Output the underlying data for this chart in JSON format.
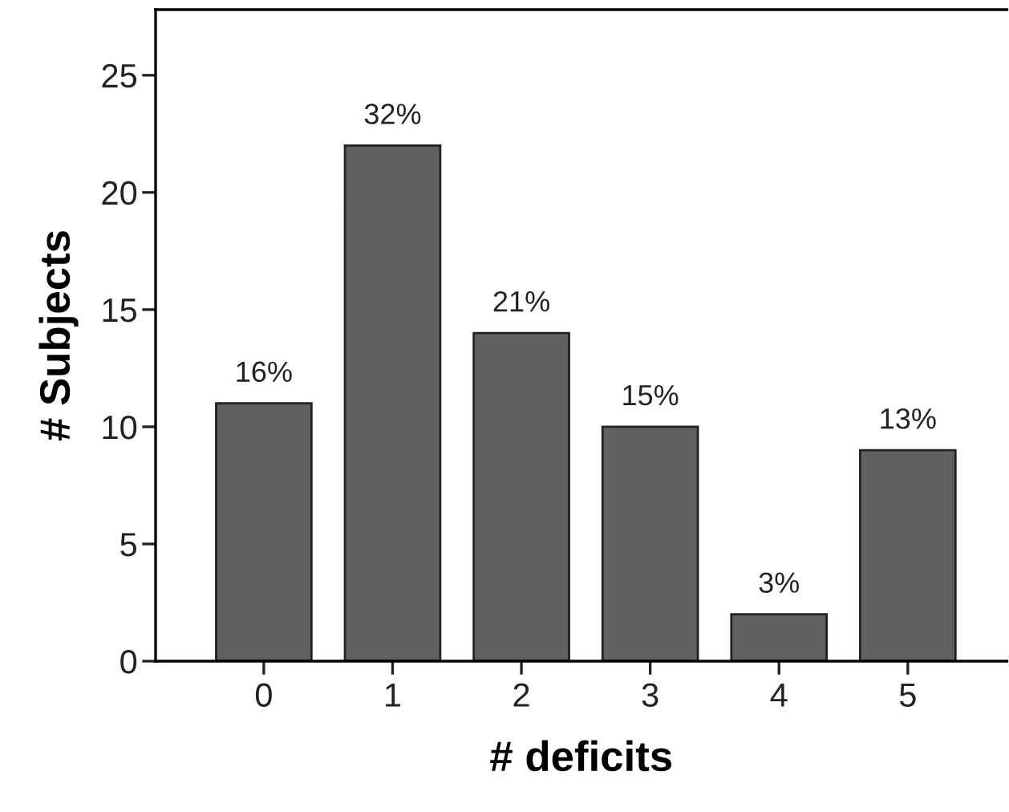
{
  "chart_data": {
    "type": "bar",
    "xlabel": "# deficits",
    "ylabel": "# Subjects",
    "categories": [
      "0",
      "1",
      "2",
      "3",
      "4",
      "5"
    ],
    "values": [
      11,
      22,
      14,
      10,
      2,
      9
    ],
    "annotations": [
      {
        "text": "16%",
        "x": "0",
        "y": 11
      },
      {
        "text": "32%",
        "x": "1",
        "y": 22
      },
      {
        "text": "21%",
        "x": "2",
        "y": 14
      },
      {
        "text": "15%",
        "x": "3",
        "y": 10
      },
      {
        "text": "3%",
        "x": "4",
        "y": 2
      },
      {
        "text": "13%",
        "x": "5",
        "y": 9
      }
    ],
    "color": "#616161",
    "ylim": [
      0,
      27.8
    ],
    "yticks": [
      0,
      5,
      10,
      15,
      20,
      25
    ],
    "grid": false
  }
}
